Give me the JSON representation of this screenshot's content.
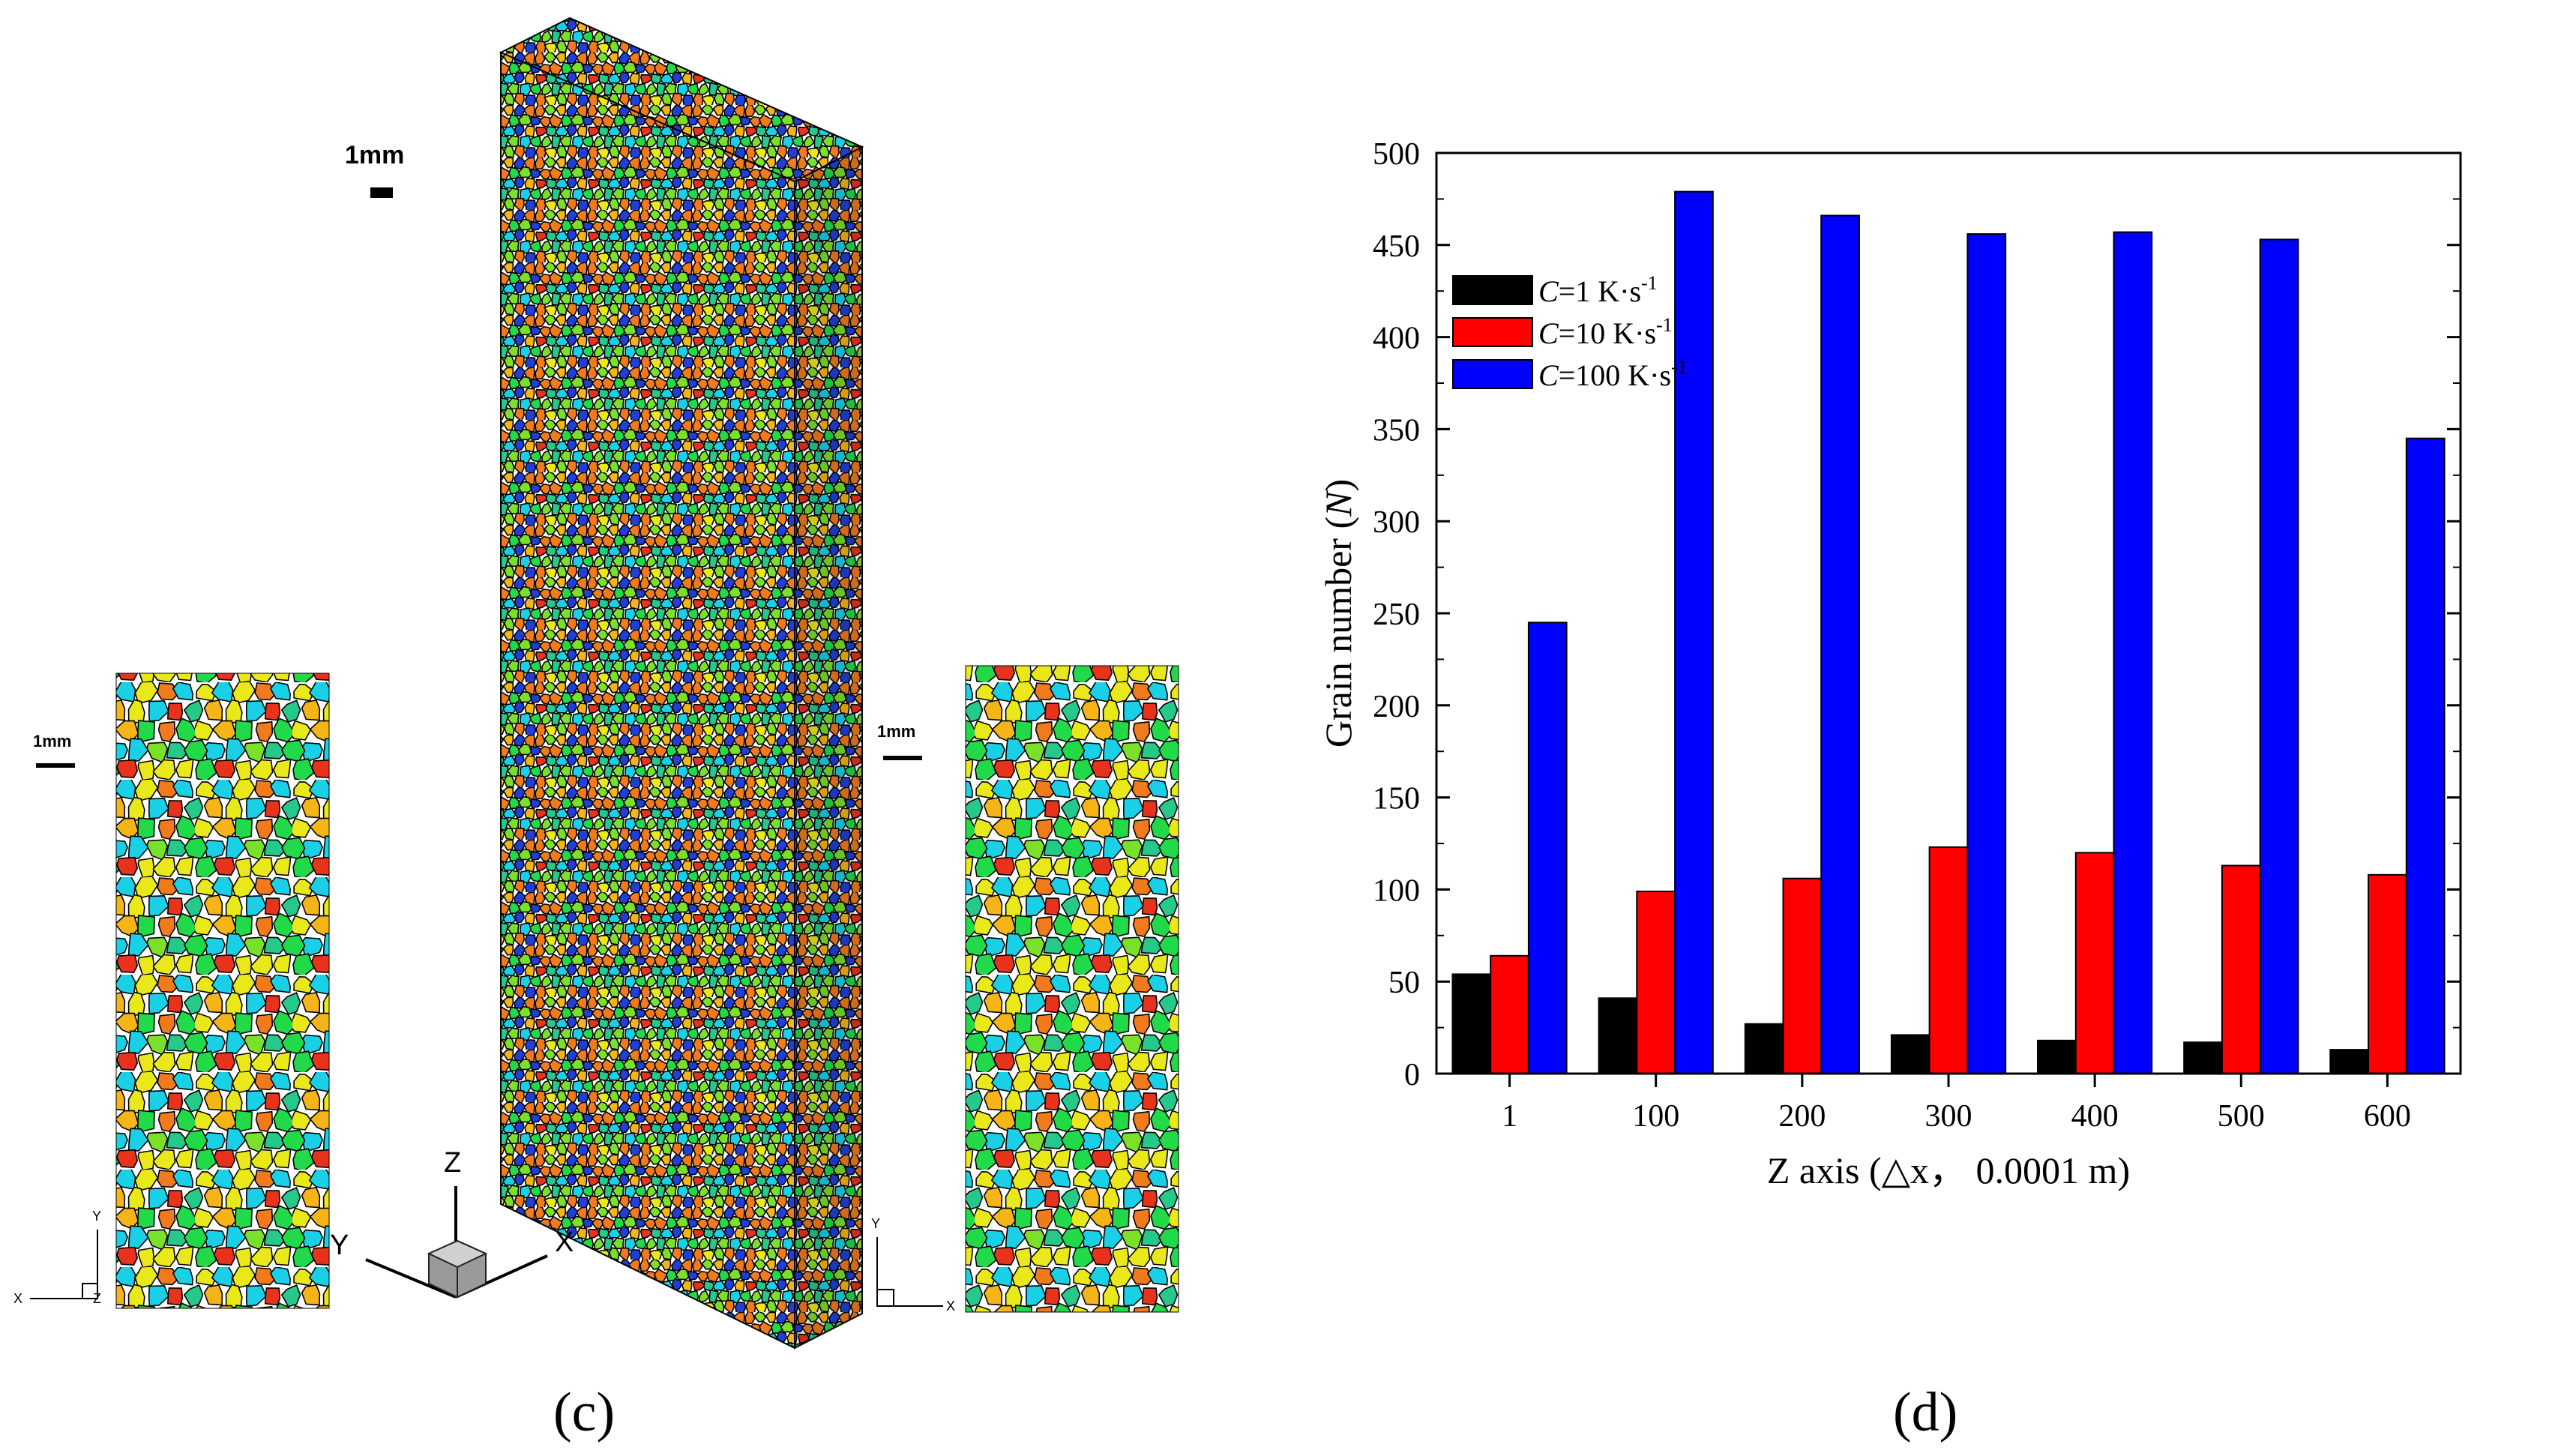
{
  "panel_c": {
    "label": "(c)",
    "scale_bar_main": "1mm",
    "scale_bar_left": "1mm",
    "scale_bar_right": "1mm",
    "axes3d": {
      "z": "Z",
      "y": "Y",
      "x": "X"
    },
    "slice_axes_left": {
      "y": "Y",
      "x": "X",
      "z": "Z"
    },
    "slice_axes_right": {
      "y": "Y",
      "x": "X"
    },
    "grain_colors": [
      "#1f3fd6",
      "#2a8cf0",
      "#19d0e6",
      "#26c98a",
      "#22d94a",
      "#7be02a",
      "#e8e81a",
      "#f5b417",
      "#f07a1c",
      "#e8331c"
    ]
  },
  "panel_d": {
    "label": "(d)"
  },
  "chart_data": {
    "type": "bar",
    "title": "",
    "xlabel": "Z axis (△x， 0.0001 m)",
    "ylabel_prefix": "Grain number (",
    "ylabel_var": "N",
    "ylabel_suffix": ")",
    "categories": [
      "1",
      "100",
      "200",
      "300",
      "400",
      "500",
      "600"
    ],
    "ylim": [
      0,
      500
    ],
    "yticks": [
      "0",
      "50",
      "100",
      "150",
      "200",
      "250",
      "300",
      "350",
      "400",
      "450",
      "500"
    ],
    "legend_position": "top-left",
    "series": [
      {
        "name": "C=1 K·s⁻¹",
        "var": "C",
        "label": "=1 K·s",
        "sup": "-1",
        "color": "#000000",
        "values": [
          54,
          41,
          27,
          21,
          18,
          17,
          13
        ]
      },
      {
        "name": "C=10 K·s⁻¹",
        "var": "C",
        "label": "=10 K·s",
        "sup": "-1",
        "color": "#ff0000",
        "values": [
          64,
          99,
          106,
          123,
          120,
          113,
          108
        ]
      },
      {
        "name": "C=100 K·s⁻¹",
        "var": "C",
        "label": "=100 K·s",
        "sup": "-1",
        "color": "#0000ff",
        "values": [
          245,
          479,
          466,
          456,
          457,
          453,
          345
        ]
      }
    ]
  }
}
